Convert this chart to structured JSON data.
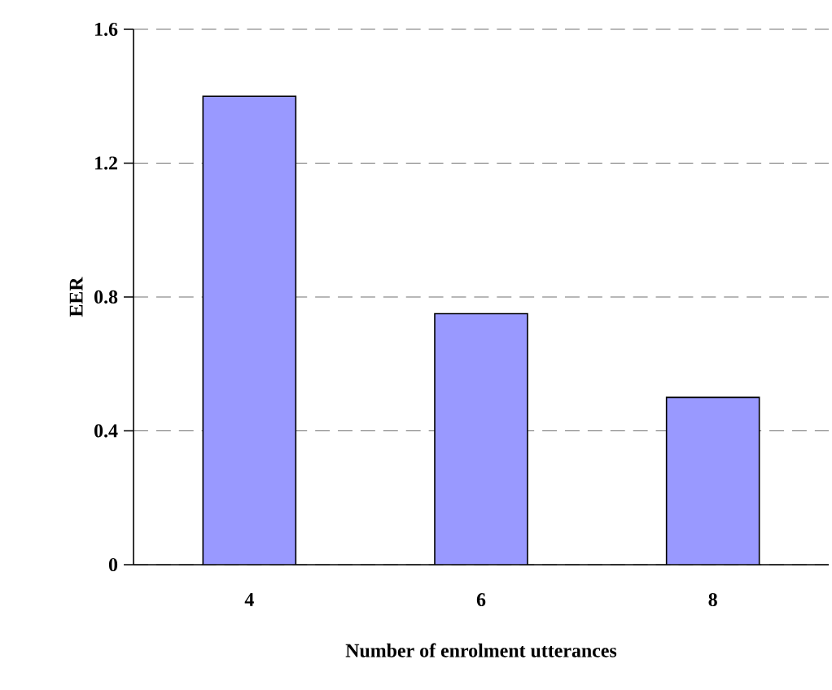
{
  "chart_data": {
    "type": "bar",
    "xlabel": "Number of enrolment utterances",
    "ylabel": "EER",
    "categories": [
      "4",
      "6",
      "8"
    ],
    "values": [
      1.4,
      0.75,
      0.5
    ],
    "color": "#9999ff",
    "ylim": [
      0,
      1.6
    ],
    "yticks": [
      0,
      0.4,
      0.8,
      1.2,
      1.6
    ],
    "grid": "y",
    "line_style": "dashed"
  }
}
